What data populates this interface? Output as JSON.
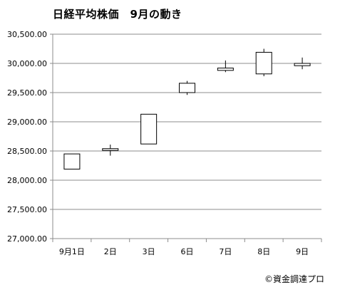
{
  "chart_data": {
    "type": "candlestick",
    "title": "日経平均株価　9月の動き",
    "categories": [
      "9月1日",
      "2日",
      "3日",
      "6日",
      "7日",
      "8日",
      "9日"
    ],
    "open": [
      28190,
      28510,
      28620,
      29500,
      29880,
      29820,
      29960
    ],
    "high": [
      28450,
      28610,
      29130,
      29700,
      30050,
      30250,
      30100
    ],
    "low": [
      28190,
      28420,
      28620,
      29460,
      29850,
      29780,
      29900
    ],
    "close": [
      28450,
      28540,
      29130,
      29660,
      29920,
      30190,
      30000
    ],
    "ylim": [
      27000,
      30500
    ],
    "y_ticks": [
      "27,000.00",
      "27,500.00",
      "28,000.00",
      "28,500.00",
      "29,000.00",
      "29,500.00",
      "30,000.00",
      "30,500.00"
    ],
    "grid": true,
    "colors": {
      "grid": "#8c8c8c",
      "up_fill": "#ffffff",
      "down_fill": "#ffffff",
      "stroke": "#000000"
    }
  },
  "copyright": "©資金調達プロ"
}
